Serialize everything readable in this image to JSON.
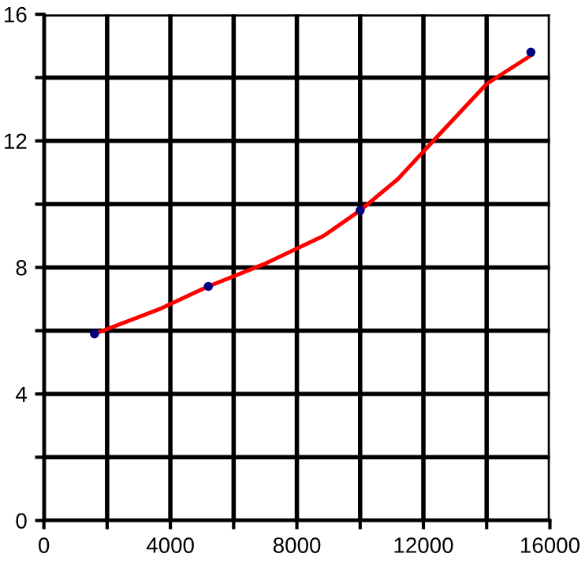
{
  "chart_data": {
    "type": "scatter",
    "xlim": [
      0,
      16000
    ],
    "ylim": [
      0,
      16
    ],
    "xticks": [
      0,
      {
        "value": 2000,
        "label": null
      },
      4000,
      {
        "value": 6000,
        "label": null
      },
      8000,
      {
        "value": 10000,
        "label": null
      },
      12000,
      {
        "value": 14000,
        "label": null
      },
      16000
    ],
    "yticks": [
      0,
      {
        "value": 2,
        "label": null
      },
      4,
      {
        "value": 6,
        "label": null
      },
      8,
      {
        "value": 10,
        "label": null
      },
      12,
      {
        "value": 14,
        "label": null
      },
      16
    ],
    "grid": true,
    "legend": false,
    "series": [
      {
        "type": "line",
        "color": "#ff0000",
        "x": [
          1600,
          3700,
          5200,
          6950,
          8850,
          10000,
          11200,
          12500,
          14000,
          15400
        ],
        "values": [
          5.9,
          6.7,
          7.4,
          8.1,
          9.0,
          9.8,
          10.8,
          12.2,
          13.8,
          14.7
        ]
      },
      {
        "marker": "circle",
        "color": "#000080",
        "x": [
          1600,
          5200,
          10000,
          15400
        ],
        "values": [
          5.9,
          7.4,
          9.8,
          14.8
        ]
      }
    ]
  }
}
